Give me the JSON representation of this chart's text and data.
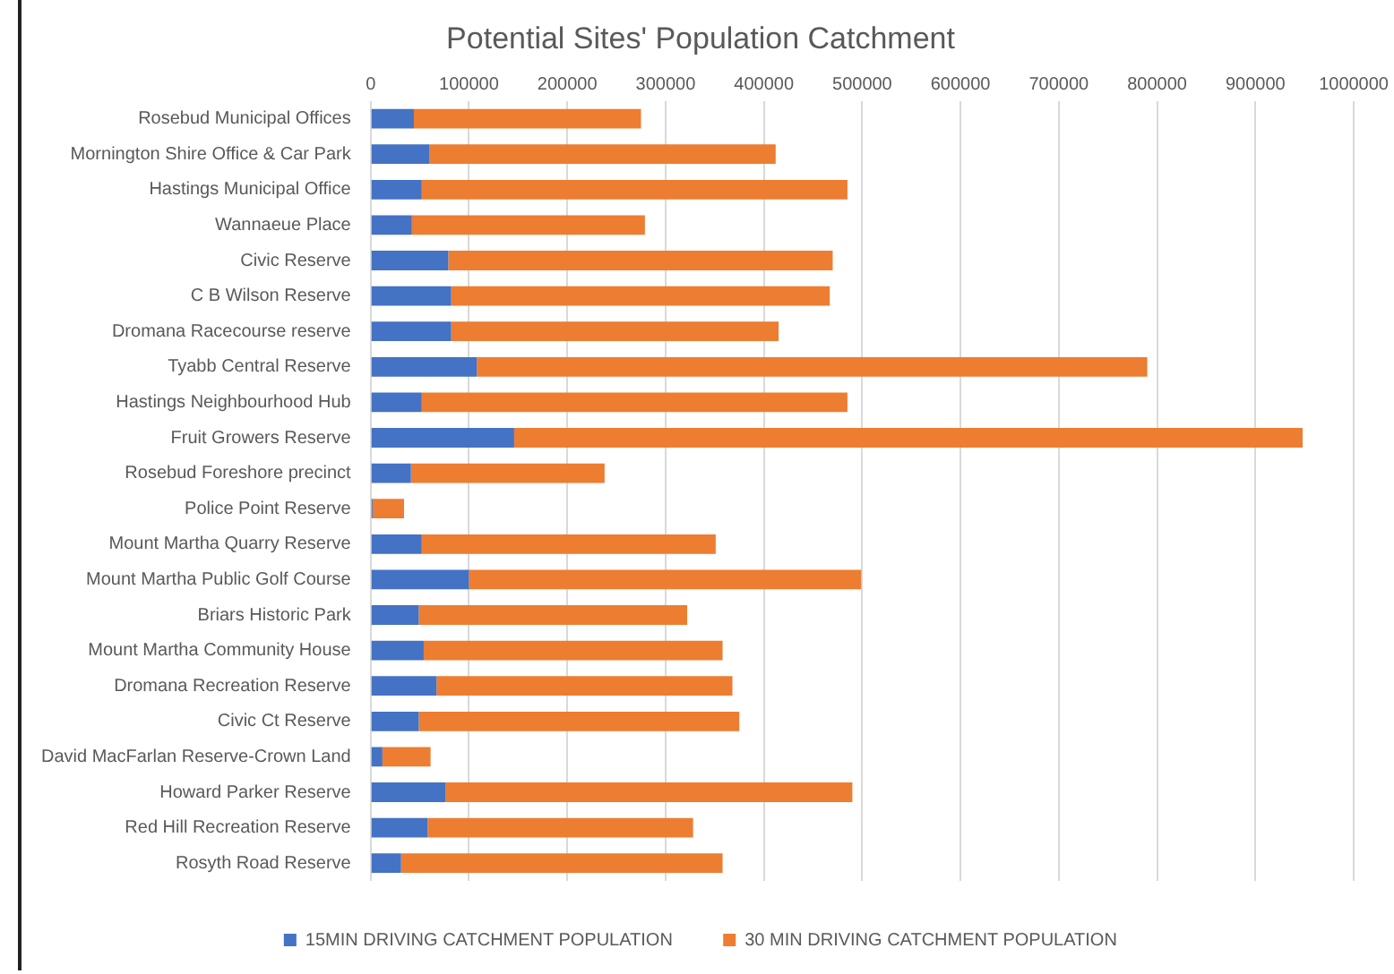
{
  "chart_data": {
    "type": "bar",
    "orientation": "horizontal",
    "stacked": true,
    "title": "Potential Sites' Population Catchment",
    "categories": [
      "Rosebud Municipal Offices",
      "Mornington Shire Office & Car Park",
      "Hastings Municipal Office",
      "Wannaeue Place",
      "Civic Reserve",
      "C B Wilson Reserve",
      "Dromana Racecourse reserve",
      "Tyabb Central Reserve",
      "Hastings Neighbourhood Hub",
      "Fruit Growers Reserve",
      "Rosebud Foreshore precinct",
      "Police Point Reserve",
      "Mount Martha Quarry Reserve",
      "Mount Martha Public Golf Course",
      "Briars Historic Park",
      "Mount Martha Community House",
      "Dromana Recreation Reserve",
      "Civic Ct Reserve",
      "David MacFarlan Reserve-Crown Land",
      "Howard Parker Reserve",
      "Red Hill Recreation Reserve",
      "Rosyth Road Reserve"
    ],
    "series": [
      {
        "name": "15MIN DRIVING CATCHMENT POPULATION",
        "color": "#4472c4",
        "values": [
          44000,
          60000,
          52000,
          42000,
          79000,
          82000,
          82000,
          108000,
          52000,
          146000,
          41000,
          2000,
          52000,
          100000,
          49000,
          54000,
          67000,
          49000,
          12000,
          76000,
          58000,
          31000
        ]
      },
      {
        "name": "30 MIN DRIVING CATCHMENT POPULATION",
        "color": "#ed7d31",
        "values": [
          231000,
          352000,
          433000,
          237000,
          391000,
          385000,
          333000,
          682000,
          433000,
          802000,
          197000,
          32000,
          299000,
          399000,
          273000,
          304000,
          301000,
          326000,
          49000,
          414000,
          270000,
          327000
        ]
      }
    ],
    "xlim": [
      0,
      1000000
    ],
    "xticks": [
      0,
      100000,
      200000,
      300000,
      400000,
      500000,
      600000,
      700000,
      800000,
      900000,
      1000000
    ],
    "grid": "x",
    "legend": "bottom"
  }
}
